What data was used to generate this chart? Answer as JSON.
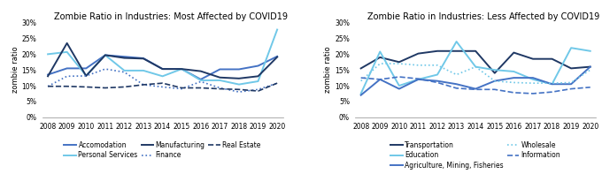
{
  "years": [
    2008,
    2009,
    2010,
    2011,
    2012,
    2013,
    2014,
    2015,
    2016,
    2017,
    2018,
    2019,
    2020
  ],
  "left_title": "Zombie Ratio in Industries: Most Affected by COVID19",
  "right_title": "Zombie Ratio in Industries: Less Affected by COVID19",
  "ylabel": "zombie ratio",
  "ylim": [
    0,
    0.3
  ],
  "yticks": [
    0.0,
    0.05,
    0.1,
    0.15,
    0.2,
    0.25,
    0.3
  ],
  "ytick_labels": [
    "0%",
    "5%",
    "10%",
    "15%",
    "20%",
    "25%",
    "30%"
  ],
  "left_series": [
    {
      "label": "Accomodation",
      "values": [
        0.135,
        0.155,
        0.155,
        0.197,
        0.192,
        0.187,
        0.153,
        0.153,
        0.12,
        0.152,
        0.152,
        0.163,
        0.193
      ],
      "color": "#4472C4",
      "linestyle": "solid",
      "linewidth": 1.4
    },
    {
      "label": "Personal Services",
      "values": [
        0.2,
        0.207,
        0.132,
        0.197,
        0.148,
        0.148,
        0.13,
        0.153,
        0.117,
        0.117,
        0.104,
        0.114,
        0.278
      ],
      "color": "#70C8E8",
      "linestyle": "solid",
      "linewidth": 1.4
    },
    {
      "label": "Manufacturing",
      "values": [
        0.13,
        0.235,
        0.131,
        0.197,
        0.188,
        0.186,
        0.153,
        0.153,
        0.146,
        0.126,
        0.123,
        0.13,
        0.191
      ],
      "color": "#1F3864",
      "linestyle": "solid",
      "linewidth": 1.4
    },
    {
      "label": "Finance",
      "values": [
        0.098,
        0.13,
        0.131,
        0.153,
        0.143,
        0.103,
        0.096,
        0.09,
        0.113,
        0.093,
        0.08,
        0.088,
        0.108
      ],
      "color": "#4472C4",
      "linestyle": "dotted",
      "linewidth": 1.2
    },
    {
      "label": "Real Estate",
      "values": [
        0.098,
        0.098,
        0.096,
        0.093,
        0.096,
        0.103,
        0.108,
        0.093,
        0.093,
        0.09,
        0.088,
        0.083,
        0.108
      ],
      "color": "#1F3864",
      "linestyle": "dashed",
      "linewidth": 1.2
    }
  ],
  "right_series": [
    {
      "label": "Transportation",
      "values": [
        0.155,
        0.19,
        0.175,
        0.202,
        0.21,
        0.21,
        0.21,
        0.14,
        0.205,
        0.185,
        0.185,
        0.155,
        0.16
      ],
      "color": "#1F3864",
      "linestyle": "solid",
      "linewidth": 1.4
    },
    {
      "label": "Education",
      "values": [
        0.075,
        0.208,
        0.1,
        0.12,
        0.135,
        0.24,
        0.16,
        0.15,
        0.145,
        0.12,
        0.105,
        0.22,
        0.21
      ],
      "color": "#70C8E8",
      "linestyle": "solid",
      "linewidth": 1.4
    },
    {
      "label": "Agriculture, Mining, Fisheries",
      "values": [
        0.07,
        0.12,
        0.09,
        0.12,
        0.115,
        0.105,
        0.09,
        0.115,
        0.125,
        0.125,
        0.105,
        0.105,
        0.16
      ],
      "color": "#4472C4",
      "linestyle": "solid",
      "linewidth": 1.4
    },
    {
      "label": "Wholesale",
      "values": [
        0.115,
        0.17,
        0.17,
        0.165,
        0.165,
        0.135,
        0.16,
        0.115,
        0.11,
        0.108,
        0.108,
        0.11,
        0.15
      ],
      "color": "#70C8E8",
      "linestyle": "dotted",
      "linewidth": 1.2
    },
    {
      "label": "Information",
      "values": [
        0.125,
        0.12,
        0.128,
        0.122,
        0.11,
        0.092,
        0.088,
        0.088,
        0.078,
        0.075,
        0.08,
        0.09,
        0.095
      ],
      "color": "#4472C4",
      "linestyle": "dashed",
      "linewidth": 1.2
    }
  ],
  "title_fontsize": 7.0,
  "axis_fontsize": 6.0,
  "tick_fontsize": 5.5,
  "legend_fontsize": 5.5
}
